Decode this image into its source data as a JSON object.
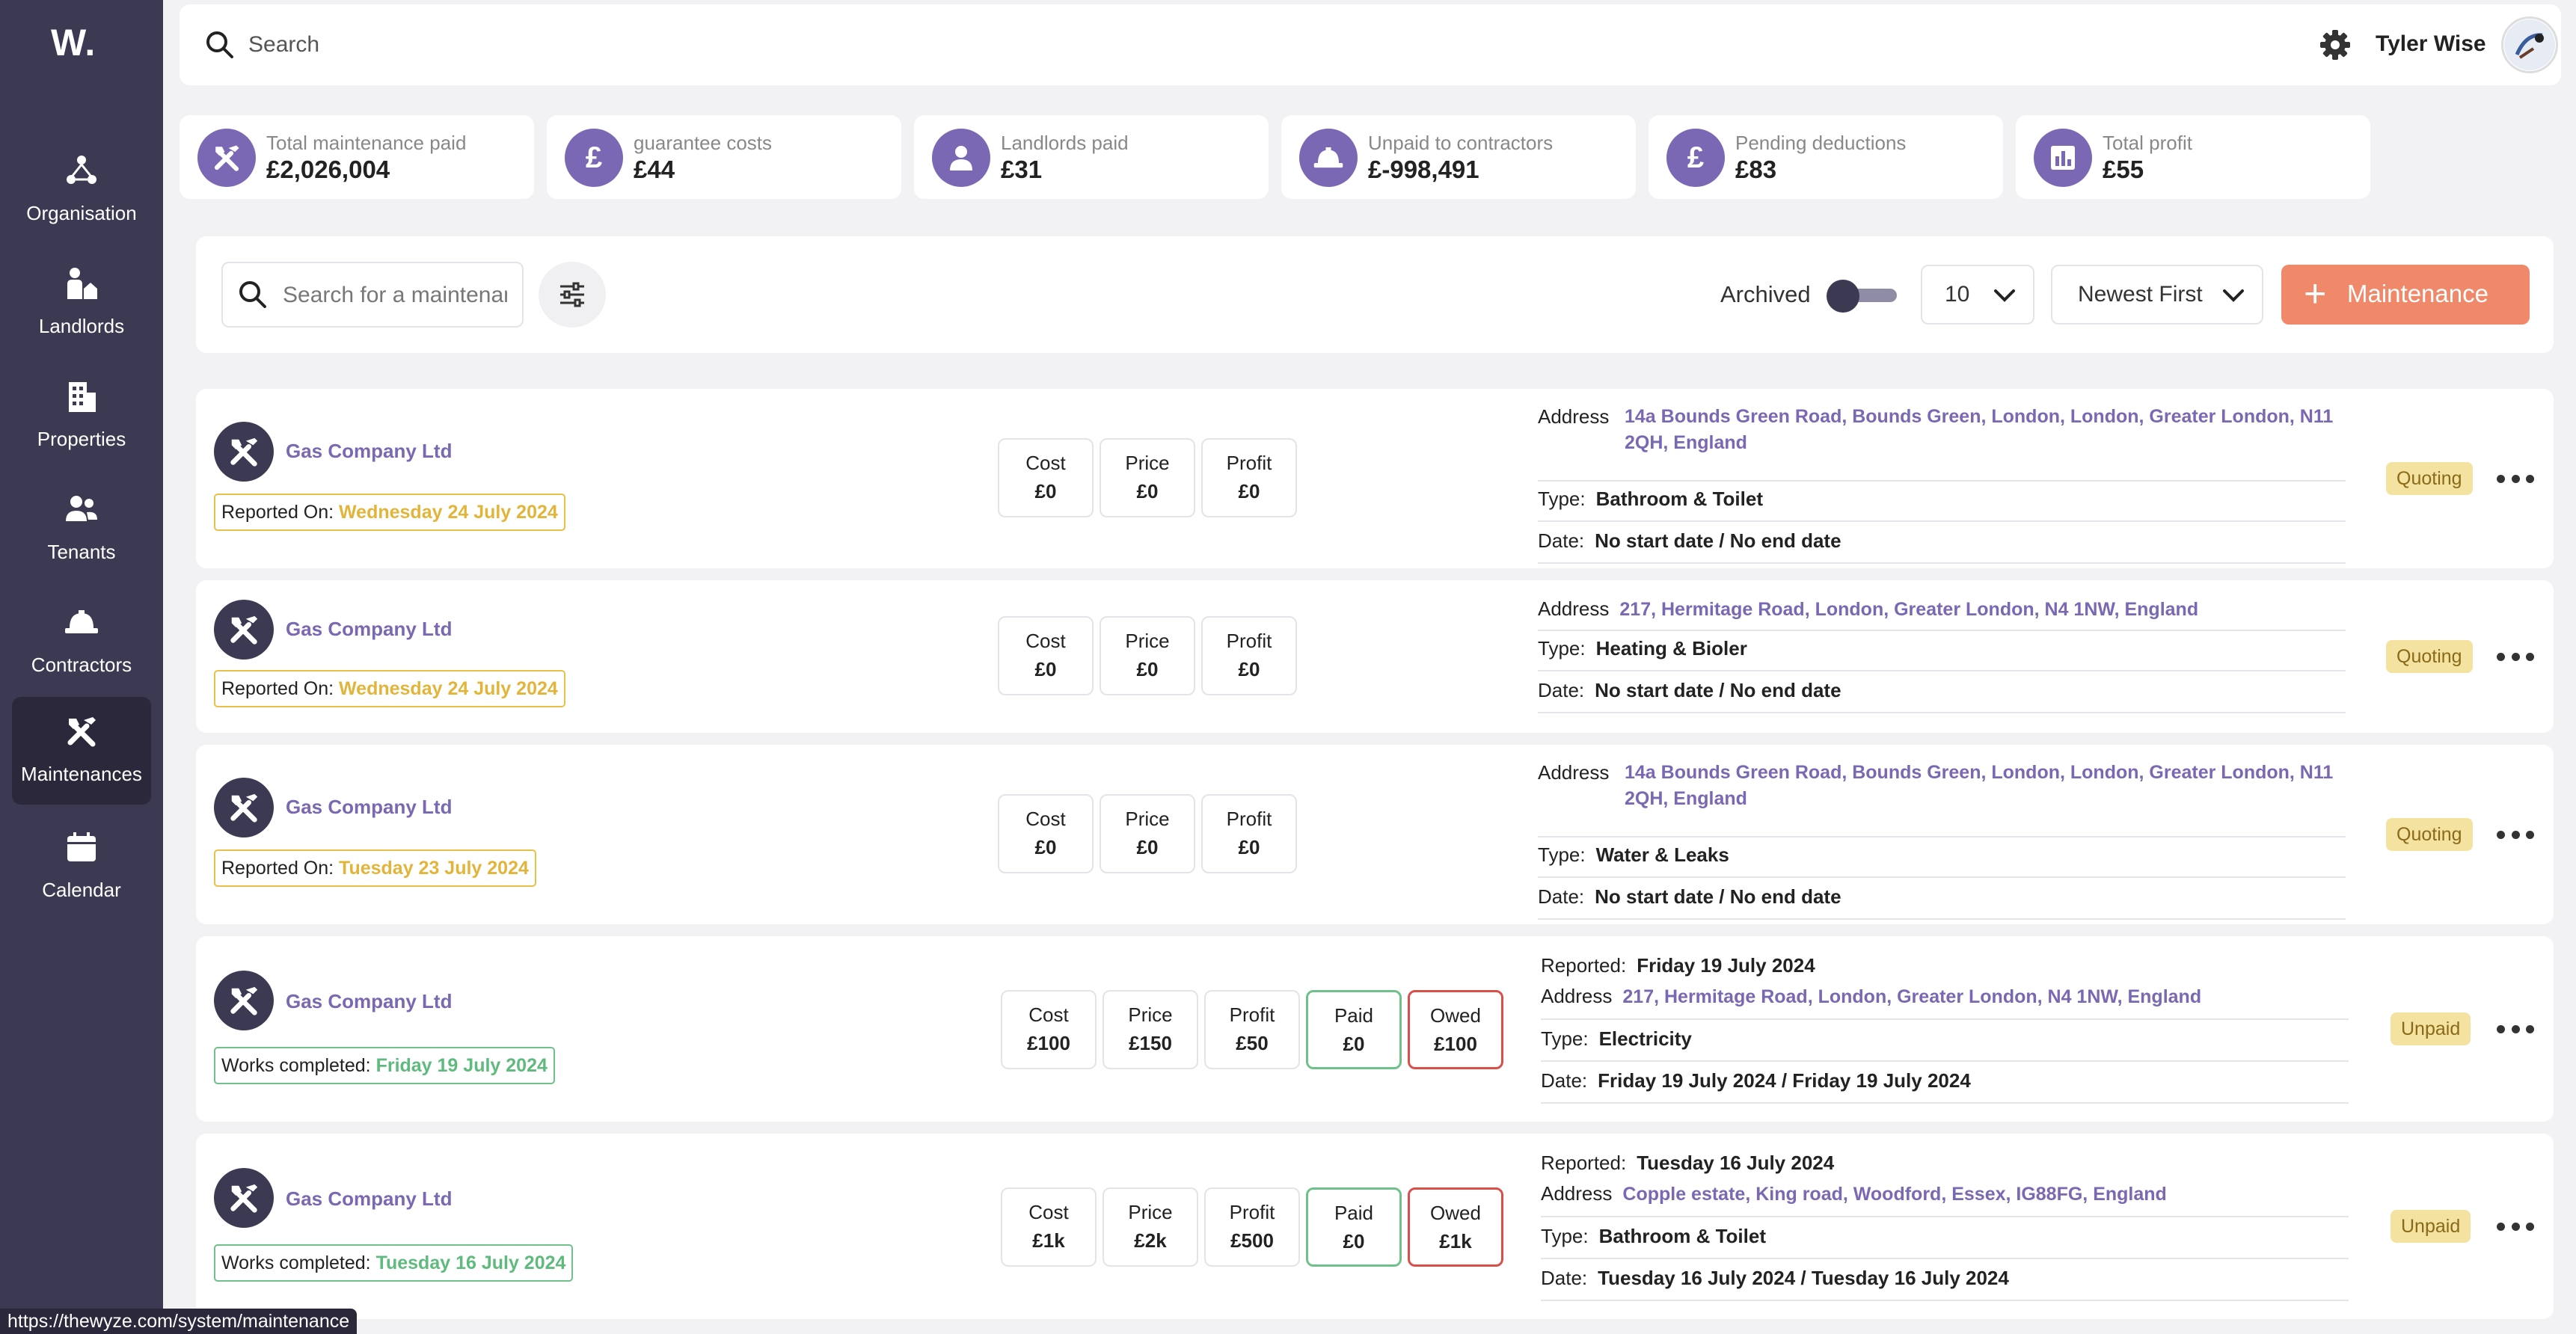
{
  "app": {
    "logo": "W."
  },
  "sidebar": {
    "items": [
      {
        "label": "Organisation",
        "icon": "organisation-icon"
      },
      {
        "label": "Landlords",
        "icon": "landlord-icon"
      },
      {
        "label": "Properties",
        "icon": "building-icon"
      },
      {
        "label": "Tenants",
        "icon": "users-icon"
      },
      {
        "label": "Contractors",
        "icon": "contractor-helmet-icon"
      },
      {
        "label": "Maintenances",
        "icon": "tools-icon",
        "active": true
      },
      {
        "label": "Calendar",
        "icon": "calendar-icon"
      }
    ]
  },
  "header": {
    "search_placeholder": "Search",
    "user_name": "Tyler Wise"
  },
  "stats": [
    {
      "label": "Total maintenance paid",
      "value": "£2,026,004",
      "icon": "tools-icon"
    },
    {
      "label": "guarantee costs",
      "value": "£44",
      "icon": "pound-icon"
    },
    {
      "label": "Landlords paid",
      "value": "£31",
      "icon": "person-icon"
    },
    {
      "label": "Unpaid to contractors",
      "value": "£-998,491",
      "icon": "contractor-helmet-icon"
    },
    {
      "label": "Pending deductions",
      "value": "£83",
      "icon": "pound-icon"
    },
    {
      "label": "Total profit",
      "value": "£55",
      "icon": "bar-chart-icon"
    }
  ],
  "filters": {
    "search_placeholder": "Search for a maintenance",
    "archived_label": "Archived",
    "archived_on": false,
    "per_page": "10",
    "sort": "Newest First",
    "add_label": "Maintenance"
  },
  "rows": [
    {
      "company": "Gas Company Ltd",
      "date_label": "Reported On: ",
      "date_value": "Wednesday 24 July 2024",
      "metrics": [
        {
          "label": "Cost",
          "value": "£0"
        },
        {
          "label": "Price",
          "value": "£0"
        },
        {
          "label": "Profit",
          "value": "£0"
        }
      ],
      "address_label": "Address",
      "address": "14a Bounds Green Road, Bounds Green, London, London, Greater London, N11 2QH, England",
      "type_label": "Type:",
      "type": "Bathroom & Toilet",
      "when_label": "Date:",
      "when": "No start date / No end date",
      "status": "Quoting"
    },
    {
      "company": "Gas Company Ltd",
      "date_label": "Reported On: ",
      "date_value": "Wednesday 24 July 2024",
      "metrics": [
        {
          "label": "Cost",
          "value": "£0"
        },
        {
          "label": "Price",
          "value": "£0"
        },
        {
          "label": "Profit",
          "value": "£0"
        }
      ],
      "address_label": "Address",
      "address": "217, Hermitage Road, London, Greater London, N4 1NW, England",
      "type_label": "Type:",
      "type": "Heating & Bioler",
      "when_label": "Date:",
      "when": "No start date / No end date",
      "status": "Quoting"
    },
    {
      "company": "Gas Company Ltd",
      "date_label": "Reported On: ",
      "date_value": "Tuesday 23 July 2024",
      "metrics": [
        {
          "label": "Cost",
          "value": "£0"
        },
        {
          "label": "Price",
          "value": "£0"
        },
        {
          "label": "Profit",
          "value": "£0"
        }
      ],
      "address_label": "Address",
      "address": "14a Bounds Green Road, Bounds Green, London, London, Greater London, N11 2QH, England",
      "type_label": "Type:",
      "type": "Water & Leaks",
      "when_label": "Date:",
      "when": "No start date / No end date",
      "status": "Quoting"
    },
    {
      "company": "Gas Company Ltd",
      "date_label": "Works completed: ",
      "date_value": "Friday 19 July 2024",
      "metrics": [
        {
          "label": "Cost",
          "value": "£100"
        },
        {
          "label": "Price",
          "value": "£150"
        },
        {
          "label": "Profit",
          "value": "£50"
        },
        {
          "label": "Paid",
          "value": "£0"
        },
        {
          "label": "Owed",
          "value": "£100"
        }
      ],
      "reported_label": "Reported:",
      "reported": "Friday 19 July 2024",
      "address_label": "Address",
      "address": "217, Hermitage Road, London, Greater London, N4 1NW, England",
      "type_label": "Type:",
      "type": "Electricity",
      "when_label": "Date:",
      "when": "Friday 19 July 2024 / Friday 19 July 2024",
      "status": "Unpaid"
    },
    {
      "company": "Gas Company Ltd",
      "date_label": "Works completed: ",
      "date_value": "Tuesday 16 July 2024",
      "metrics": [
        {
          "label": "Cost",
          "value": "£1k"
        },
        {
          "label": "Price",
          "value": "£2k"
        },
        {
          "label": "Profit",
          "value": "£500"
        },
        {
          "label": "Paid",
          "value": "£0"
        },
        {
          "label": "Owed",
          "value": "£1k"
        }
      ],
      "reported_label": "Reported:",
      "reported": "Tuesday 16 July 2024",
      "address_label": "Address",
      "address": "Copple estate, King road, Woodford, Essex, IG88FG, England",
      "type_label": "Type:",
      "type": "Bathroom & Toilet",
      "when_label": "Date:",
      "when": "Tuesday 16 July 2024 / Tuesday 16 July 2024",
      "status": "Unpaid"
    }
  ],
  "statusbar": {
    "url": "https://thewyze.com/system/maintenance"
  },
  "colors": {
    "sidebar": "#3c3a52",
    "accent": "#7b68b5",
    "orange": "#f0896a",
    "yellow": "#e2b53a",
    "green": "#5fba7d",
    "red": "#d9504a"
  }
}
